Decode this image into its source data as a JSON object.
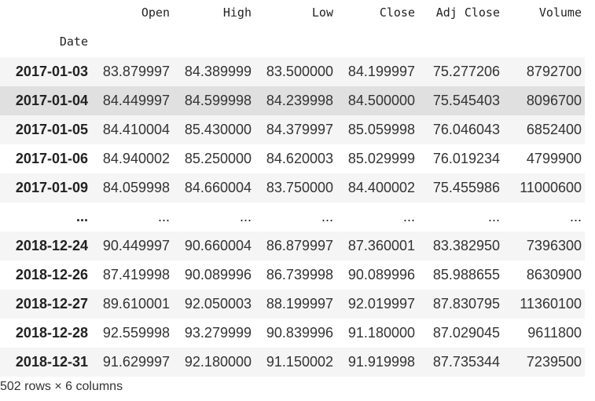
{
  "dataframe": {
    "columns": [
      "Open",
      "High",
      "Low",
      "Close",
      "Adj Close",
      "Volume"
    ],
    "index_name": "Date",
    "rows": [
      {
        "date": "2017-01-03",
        "values": [
          "83.879997",
          "84.389999",
          "83.500000",
          "84.199997",
          "75.277206",
          "8792700"
        ]
      },
      {
        "date": "2017-01-04",
        "values": [
          "84.449997",
          "84.599998",
          "84.239998",
          "84.500000",
          "75.545403",
          "8096700"
        ]
      },
      {
        "date": "2017-01-05",
        "values": [
          "84.410004",
          "85.430000",
          "84.379997",
          "85.059998",
          "76.046043",
          "6852400"
        ]
      },
      {
        "date": "2017-01-06",
        "values": [
          "84.940002",
          "85.250000",
          "84.620003",
          "85.029999",
          "76.019234",
          "4799900"
        ]
      },
      {
        "date": "2017-01-09",
        "values": [
          "84.059998",
          "84.660004",
          "83.750000",
          "84.400002",
          "75.455986",
          "11000600"
        ]
      },
      {
        "date": "...",
        "values": [
          "...",
          "...",
          "...",
          "...",
          "...",
          "..."
        ]
      },
      {
        "date": "2018-12-24",
        "values": [
          "90.449997",
          "90.660004",
          "86.879997",
          "87.360001",
          "83.382950",
          "7396300"
        ]
      },
      {
        "date": "2018-12-26",
        "values": [
          "87.419998",
          "90.089996",
          "86.739998",
          "90.089996",
          "85.988655",
          "8630900"
        ]
      },
      {
        "date": "2018-12-27",
        "values": [
          "89.610001",
          "92.050003",
          "88.199997",
          "92.019997",
          "87.830795",
          "11360100"
        ]
      },
      {
        "date": "2018-12-28",
        "values": [
          "92.559998",
          "93.279999",
          "90.839996",
          "91.180000",
          "87.029045",
          "9611800"
        ]
      },
      {
        "date": "2018-12-31",
        "values": [
          "91.629997",
          "92.180000",
          "91.150002",
          "91.919998",
          "87.735344",
          "7239500"
        ]
      }
    ],
    "shape_text": "502 rows × 6 columns"
  }
}
